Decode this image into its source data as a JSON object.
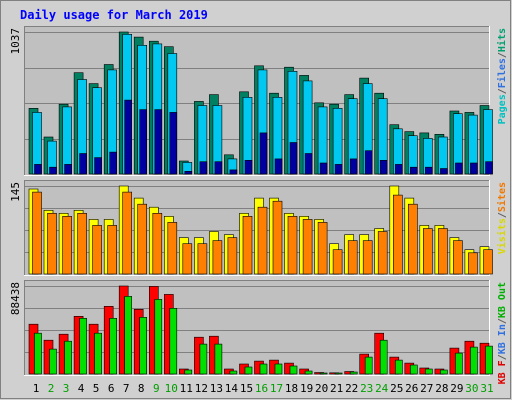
{
  "chart_data": {
    "type": "bar",
    "title": "Daily usage for March 2019",
    "x": [
      "1",
      "2",
      "3",
      "4",
      "5",
      "6",
      "7",
      "8",
      "9",
      "10",
      "11",
      "12",
      "13",
      "14",
      "15",
      "16",
      "17",
      "18",
      "19",
      "20",
      "21",
      "22",
      "23",
      "24",
      "25",
      "26",
      "27",
      "28",
      "29",
      "30",
      "31"
    ],
    "weekend_days": [
      2,
      3,
      9,
      10,
      16,
      17,
      23,
      24,
      30,
      31
    ],
    "panels": [
      {
        "id": "hits",
        "ymax_label": "1037",
        "ymax": 1037,
        "legend": [
          "Pages",
          "/",
          "Files",
          "/",
          "Hits"
        ],
        "legend_colors": [
          "#00c0c0",
          "#606060",
          "#3070e0",
          "#606060",
          "#00a070"
        ],
        "series": [
          {
            "name": "Hits",
            "color": "#008060",
            "values": [
              480,
              270,
              510,
              740,
              660,
              800,
              1037,
              1000,
              970,
              930,
              95,
              530,
              580,
              140,
              600,
              790,
              590,
              780,
              720,
              520,
              510,
              580,
              700,
              590,
              360,
              310,
              300,
              290,
              460,
              450,
              500
            ]
          },
          {
            "name": "Files",
            "color": "#00c8f0",
            "values": [
              450,
              240,
              490,
              690,
              630,
              760,
              1020,
              940,
              950,
              880,
              85,
              500,
              500,
              110,
              560,
              760,
              560,
              750,
              680,
              490,
              480,
              550,
              660,
              550,
              330,
              280,
              260,
              270,
              440,
              430,
              470
            ]
          },
          {
            "name": "Pages",
            "color": "#0000a0",
            "values": [
              70,
              50,
              70,
              150,
              120,
              160,
              540,
              470,
              470,
              450,
              20,
              90,
              90,
              30,
              100,
              300,
              110,
              230,
              150,
              80,
              70,
              110,
              170,
              100,
              70,
              50,
              50,
              40,
              80,
              80,
              90
            ]
          }
        ]
      },
      {
        "id": "visits",
        "ymax_label": "145",
        "ymax": 145,
        "legend": [
          "Visits",
          "/",
          "Sites"
        ],
        "legend_colors": [
          "#d8d800",
          "#606060",
          "#f07800"
        ],
        "series": [
          {
            "name": "Visits",
            "color": "#ffff00",
            "values": [
              140,
              105,
              100,
              105,
              90,
              90,
              145,
              125,
              110,
              95,
              60,
              60,
              70,
              65,
              100,
              125,
              125,
              100,
              95,
              90,
              50,
              65,
              65,
              75,
              145,
              125,
              80,
              80,
              60,
              40,
              45
            ]
          },
          {
            "name": "Sites",
            "color": "#ff8000",
            "values": [
              135,
              100,
              95,
              100,
              80,
              80,
              135,
              115,
              100,
              85,
              50,
              50,
              55,
              60,
              95,
              110,
              120,
              95,
              90,
              85,
              40,
              55,
              55,
              70,
              130,
              115,
              75,
              75,
              55,
              35,
              40
            ]
          }
        ]
      },
      {
        "id": "kbytes",
        "ymax_label": "88438",
        "ymax": 88438,
        "legend": [
          "KB F",
          "/",
          "KB In",
          "/",
          "KB Out"
        ],
        "legend_colors": [
          "#e00000",
          "#606060",
          "#3070e0",
          "#606060",
          "#00b000"
        ],
        "series": [
          {
            "name": "KB F",
            "color": "#ff0000",
            "values": [
              50000,
              34000,
              40000,
              58000,
              50000,
              68000,
              88438,
              65000,
              88000,
              80000,
              5000,
              37000,
              38000,
              5000,
              10000,
              13000,
              14000,
              11000,
              5000,
              1500,
              1200,
              2500,
              20000,
              41000,
              17000,
              11000,
              6000,
              5000,
              26000,
              33000,
              31000
            ]
          },
          {
            "name": "KB In",
            "color": "#0000c0",
            "values": [
              0,
              0,
              0,
              0,
              0,
              0,
              0,
              0,
              0,
              0,
              0,
              0,
              0,
              0,
              0,
              0,
              0,
              0,
              0,
              0,
              0,
              0,
              0,
              0,
              0,
              0,
              0,
              0,
              0,
              0,
              0
            ]
          },
          {
            "name": "KB Out",
            "color": "#00e000",
            "values": [
              41000,
              25000,
              33000,
              56000,
              41000,
              56000,
              78000,
              57000,
              75000,
              66000,
              4000,
              30000,
              30000,
              3000,
              7000,
              10000,
              10000,
              8000,
              3000,
              1000,
              900,
              2000,
              17000,
              34000,
              14000,
              9000,
              5000,
              4000,
              21000,
              27000,
              28000
            ]
          }
        ]
      }
    ]
  },
  "colors": {
    "frame": "#d0d0d0",
    "plot_bg": "#c0c0c0",
    "title": "#0000ff",
    "weekday_label": "#000000",
    "weekend_label": "#00a000",
    "ymax_label": "#000000"
  }
}
